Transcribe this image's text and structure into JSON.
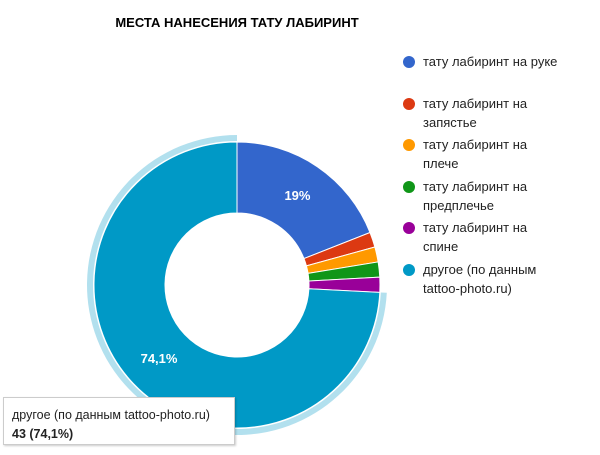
{
  "chart_data": {
    "type": "donut",
    "title": "МЕСТА НАНЕСЕНИЯ ТАТУ ЛАБИРИНТ",
    "categories": [
      "тату лабиринт на руке",
      "тату лабиринт на запястье",
      "тату лабиринт на плече",
      "тату лабиринт на предплечье",
      "тату лабиринт на спине",
      "другое (по данным tattoo-photo.ru)"
    ],
    "values": [
      19,
      1.7,
      1.7,
      1.7,
      1.7,
      74.1
    ],
    "value_labels": [
      "19%",
      null,
      null,
      null,
      null,
      "74,1%"
    ],
    "colors": [
      "#3366cc",
      "#dc3912",
      "#ff9900",
      "#109618",
      "#990099",
      "#0099c6"
    ],
    "legend": "right",
    "tooltip": {
      "title": "другое (по данным tattoo-photo.ru)",
      "value": "43 (74,1%)"
    }
  }
}
